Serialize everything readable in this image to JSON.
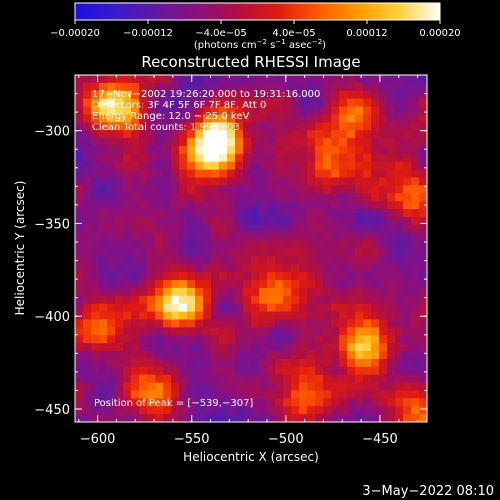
{
  "chart_data": {
    "type": "heatmap",
    "title": "Reconstructed RHESSI Image",
    "xlabel": "Heliocentric X (arcsec)",
    "ylabel": "Heliocentric Y (arcsec)",
    "xlim": [
      -612,
      -425
    ],
    "ylim": [
      -457,
      -270
    ],
    "x_ticks": [
      -600,
      -550,
      -500,
      -450
    ],
    "x_tick_labels": [
      "−600",
      "−550",
      "−500",
      "−450"
    ],
    "y_ticks": [
      -300,
      -350,
      -400,
      -450
    ],
    "y_tick_labels": [
      "−300",
      "−350",
      "−400",
      "−450"
    ],
    "colorbar": {
      "range": [
        -0.0002,
        0.0002
      ],
      "ticks": [
        -0.0002,
        -0.00012,
        -4e-05,
        4e-05,
        0.00012,
        0.0002
      ],
      "tick_labels": [
        "−0.00020",
        "−0.00012",
        "−4.0e−05",
        "4.0e−05",
        "0.00012",
        "0.00020"
      ],
      "units_prefix": "(photons cm",
      "units_sup1": "−2",
      "units_mid1": " s",
      "units_sup2": "−1",
      "units_mid2": " asec",
      "units_sup3": "−2",
      "units_suffix": ")",
      "colors": [
        "#1a10e0",
        "#3a1acc",
        "#601aa0",
        "#8a1080",
        "#b01040",
        "#e01a10",
        "#ff5a00",
        "#ff9a00",
        "#ffd23a",
        "#ffffff"
      ]
    },
    "annotations": {
      "time": "17−Nov−2002 19:26:20.000 to 19:31:16.000",
      "detectors": "Detectors: 3F 4F 5F 6F 7F 8F, Att 0",
      "energy": "Energy Range: 12.0 − 25.0 keV",
      "clean": "Clean    Total counts: 1.99E+03",
      "peak": "Position of Peak = [−539,−307]"
    },
    "peak_position": [
      -539,
      -307
    ],
    "bright_sources": [
      {
        "x": -539,
        "y": -307,
        "intensity": 1.0
      },
      {
        "x": -592,
        "y": -287,
        "intensity": 0.7
      },
      {
        "x": -476,
        "y": -318,
        "intensity": 0.55
      },
      {
        "x": -463,
        "y": -290,
        "intensity": 0.5
      },
      {
        "x": -556,
        "y": -393,
        "intensity": 0.75
      },
      {
        "x": -460,
        "y": -418,
        "intensity": 0.65
      },
      {
        "x": -505,
        "y": -390,
        "intensity": 0.45
      },
      {
        "x": -435,
        "y": -335,
        "intensity": 0.5
      },
      {
        "x": -570,
        "y": -440,
        "intensity": 0.45
      },
      {
        "x": -490,
        "y": -445,
        "intensity": 0.4
      },
      {
        "x": -435,
        "y": -450,
        "intensity": 0.45
      },
      {
        "x": -600,
        "y": -400,
        "intensity": 0.35
      }
    ]
  },
  "footer": {
    "date": "3−May−2022 08:10"
  }
}
